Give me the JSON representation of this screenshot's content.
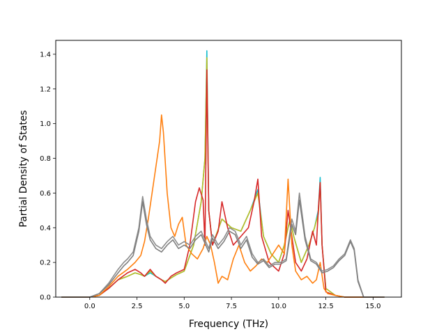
{
  "chart_data": {
    "type": "line",
    "title": "",
    "xlabel": "Frequency (THz)",
    "ylabel": "Partial Density of States",
    "xlim": [
      -1.8,
      16.5
    ],
    "ylim": [
      0.0,
      1.48
    ],
    "xticks": [
      0.0,
      2.5,
      5.0,
      7.5,
      10.0,
      12.5,
      15.0
    ],
    "xtick_labels": [
      "0.0",
      "2.5",
      "5.0",
      "7.5",
      "10.0",
      "12.5",
      "15.0"
    ],
    "yticks": [
      0.0,
      0.2,
      0.4,
      0.6,
      0.8,
      1.0,
      1.2,
      1.4
    ],
    "ytick_labels": [
      "0.0",
      "0.2",
      "0.4",
      "0.6",
      "0.8",
      "1.0",
      "1.2",
      "1.4"
    ],
    "grid": false,
    "legend": "none",
    "series": [
      {
        "color": "#17becf",
        "x": [
          -1.5,
          0.0,
          0.5,
          1.0,
          1.5,
          2.0,
          2.4,
          2.7,
          2.9,
          3.2,
          3.5,
          3.8,
          4.0,
          4.3,
          4.6,
          5.0,
          5.5,
          5.9,
          6.1,
          6.2,
          6.3,
          6.5,
          7.0,
          7.5,
          8.0,
          8.5,
          8.9,
          9.2,
          9.6,
          10.0,
          10.3,
          10.6,
          10.8,
          11.2,
          11.6,
          11.9,
          12.1,
          12.2,
          12.3,
          12.5,
          13.0,
          13.5,
          14.0,
          15.6
        ],
        "y": [
          0.0,
          0.0,
          0.01,
          0.05,
          0.1,
          0.12,
          0.14,
          0.13,
          0.12,
          0.14,
          0.12,
          0.1,
          0.09,
          0.11,
          0.13,
          0.15,
          0.3,
          0.55,
          0.8,
          1.42,
          0.5,
          0.3,
          0.45,
          0.4,
          0.38,
          0.5,
          0.62,
          0.35,
          0.25,
          0.2,
          0.3,
          0.45,
          0.35,
          0.2,
          0.3,
          0.4,
          0.5,
          0.69,
          0.3,
          0.05,
          0.01,
          0.0,
          0.0,
          0.0
        ]
      },
      {
        "color": "#bcbd22",
        "x": [
          -1.5,
          0.0,
          0.5,
          1.0,
          1.5,
          2.0,
          2.4,
          2.7,
          2.9,
          3.2,
          3.5,
          3.8,
          4.0,
          4.3,
          4.6,
          5.0,
          5.5,
          5.9,
          6.1,
          6.2,
          6.3,
          6.5,
          7.0,
          7.5,
          8.0,
          8.5,
          8.9,
          9.2,
          9.6,
          10.0,
          10.3,
          10.6,
          10.8,
          11.2,
          11.6,
          11.9,
          12.1,
          12.2,
          12.3,
          12.5,
          13.0,
          13.5,
          14.0,
          15.6
        ],
        "y": [
          0.0,
          0.0,
          0.01,
          0.05,
          0.1,
          0.12,
          0.14,
          0.13,
          0.12,
          0.15,
          0.12,
          0.1,
          0.09,
          0.11,
          0.13,
          0.15,
          0.3,
          0.55,
          0.8,
          1.38,
          0.5,
          0.3,
          0.45,
          0.4,
          0.38,
          0.5,
          0.6,
          0.35,
          0.25,
          0.2,
          0.3,
          0.45,
          0.35,
          0.2,
          0.3,
          0.4,
          0.48,
          0.66,
          0.3,
          0.05,
          0.01,
          0.0,
          0.0,
          0.0
        ]
      },
      {
        "color": "#d62728",
        "x": [
          -1.5,
          0.0,
          0.5,
          1.0,
          1.5,
          2.0,
          2.4,
          2.7,
          2.9,
          3.2,
          3.5,
          3.8,
          4.0,
          4.3,
          4.6,
          5.0,
          5.3,
          5.6,
          5.8,
          6.0,
          6.1,
          6.2,
          6.3,
          6.5,
          6.8,
          7.0,
          7.3,
          7.6,
          8.0,
          8.4,
          8.7,
          8.9,
          9.1,
          9.5,
          10.0,
          10.3,
          10.5,
          10.7,
          10.9,
          11.2,
          11.5,
          11.8,
          12.0,
          12.1,
          12.2,
          12.3,
          12.5,
          13.0,
          13.5,
          14.0,
          15.6
        ],
        "y": [
          0.0,
          0.0,
          0.01,
          0.05,
          0.1,
          0.14,
          0.16,
          0.14,
          0.12,
          0.16,
          0.12,
          0.1,
          0.08,
          0.12,
          0.14,
          0.16,
          0.3,
          0.55,
          0.63,
          0.56,
          0.3,
          1.31,
          0.5,
          0.3,
          0.38,
          0.55,
          0.4,
          0.3,
          0.35,
          0.4,
          0.55,
          0.68,
          0.35,
          0.2,
          0.15,
          0.25,
          0.5,
          0.35,
          0.2,
          0.15,
          0.22,
          0.38,
          0.3,
          0.5,
          0.66,
          0.3,
          0.03,
          0.01,
          0.0,
          0.0,
          0.0
        ]
      },
      {
        "color": "#ff7f0e",
        "x": [
          -1.5,
          0.0,
          0.5,
          1.0,
          1.5,
          2.0,
          2.4,
          2.7,
          2.9,
          3.1,
          3.3,
          3.5,
          3.7,
          3.8,
          3.9,
          4.1,
          4.3,
          4.5,
          4.7,
          4.9,
          5.1,
          5.4,
          5.7,
          6.0,
          6.2,
          6.4,
          6.6,
          6.8,
          7.0,
          7.3,
          7.6,
          7.9,
          8.2,
          8.5,
          8.8,
          9.1,
          9.4,
          9.7,
          10.0,
          10.3,
          10.5,
          10.7,
          10.9,
          11.2,
          11.5,
          11.8,
          12.0,
          12.2,
          12.4,
          12.6,
          13.0,
          13.5,
          14.0,
          15.6
        ],
        "y": [
          0.0,
          0.0,
          0.01,
          0.06,
          0.12,
          0.16,
          0.2,
          0.24,
          0.32,
          0.45,
          0.6,
          0.75,
          0.9,
          1.05,
          0.95,
          0.6,
          0.4,
          0.35,
          0.42,
          0.46,
          0.3,
          0.25,
          0.22,
          0.28,
          0.35,
          0.3,
          0.2,
          0.08,
          0.12,
          0.1,
          0.22,
          0.3,
          0.2,
          0.15,
          0.18,
          0.22,
          0.2,
          0.25,
          0.3,
          0.25,
          0.68,
          0.3,
          0.15,
          0.1,
          0.12,
          0.08,
          0.1,
          0.2,
          0.05,
          0.02,
          0.01,
          0.0,
          0.0,
          0.0
        ]
      },
      {
        "color": "#8c8c8c",
        "x": [
          -1.5,
          0.0,
          0.5,
          1.0,
          1.5,
          1.8,
          2.0,
          2.3,
          2.6,
          2.8,
          3.0,
          3.2,
          3.5,
          3.8,
          4.1,
          4.4,
          4.7,
          5.0,
          5.3,
          5.6,
          5.9,
          6.1,
          6.3,
          6.5,
          6.8,
          7.1,
          7.4,
          7.7,
          8.0,
          8.3,
          8.6,
          8.9,
          9.2,
          9.5,
          9.8,
          10.1,
          10.4,
          10.7,
          10.9,
          11.1,
          11.4,
          11.7,
          12.0,
          12.3,
          12.6,
          12.9,
          13.2,
          13.5,
          13.8,
          14.0,
          14.2,
          14.5,
          15.6
        ],
        "y": [
          0.0,
          0.0,
          0.02,
          0.08,
          0.16,
          0.2,
          0.22,
          0.26,
          0.4,
          0.58,
          0.45,
          0.35,
          0.3,
          0.28,
          0.32,
          0.35,
          0.3,
          0.32,
          0.3,
          0.35,
          0.38,
          0.33,
          0.28,
          0.36,
          0.3,
          0.34,
          0.4,
          0.38,
          0.3,
          0.35,
          0.25,
          0.2,
          0.22,
          0.18,
          0.2,
          0.2,
          0.22,
          0.45,
          0.38,
          0.6,
          0.35,
          0.22,
          0.2,
          0.15,
          0.16,
          0.18,
          0.22,
          0.25,
          0.33,
          0.28,
          0.1,
          0.0,
          0.0
        ]
      },
      {
        "color": "#7f7f7f",
        "x": [
          -1.5,
          0.0,
          0.5,
          1.0,
          1.5,
          1.8,
          2.0,
          2.3,
          2.6,
          2.8,
          3.0,
          3.2,
          3.5,
          3.8,
          4.1,
          4.4,
          4.7,
          5.0,
          5.3,
          5.6,
          5.9,
          6.1,
          6.3,
          6.5,
          6.8,
          7.1,
          7.4,
          7.7,
          8.0,
          8.3,
          8.6,
          8.9,
          9.2,
          9.5,
          9.8,
          10.1,
          10.4,
          10.7,
          10.9,
          11.1,
          11.4,
          11.7,
          12.0,
          12.3,
          12.6,
          12.9,
          13.2,
          13.5,
          13.8,
          14.0,
          14.2,
          14.5,
          15.6
        ],
        "y": [
          0.0,
          0.0,
          0.02,
          0.07,
          0.14,
          0.18,
          0.2,
          0.24,
          0.38,
          0.55,
          0.42,
          0.33,
          0.28,
          0.26,
          0.3,
          0.33,
          0.28,
          0.3,
          0.28,
          0.33,
          0.36,
          0.31,
          0.26,
          0.34,
          0.28,
          0.32,
          0.38,
          0.36,
          0.28,
          0.33,
          0.23,
          0.19,
          0.21,
          0.17,
          0.19,
          0.19,
          0.21,
          0.42,
          0.36,
          0.56,
          0.33,
          0.21,
          0.19,
          0.14,
          0.15,
          0.17,
          0.21,
          0.24,
          0.32,
          0.27,
          0.09,
          0.0,
          0.0
        ]
      }
    ]
  }
}
